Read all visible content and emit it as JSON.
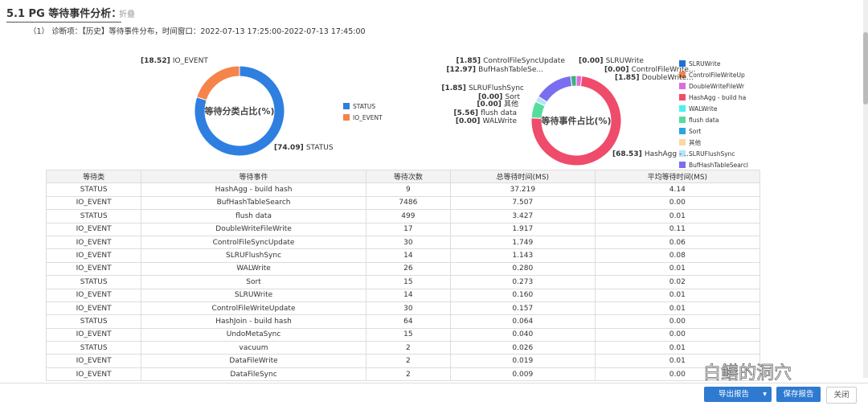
{
  "section": {
    "title": "5.1  PG 等待事件分析：",
    "fold_label": "折叠",
    "subtitle": "（1） 诊断项：【历史】等待事件分布，时间窗口：2022-07-13 17:25:00-2022-07-13 17:45:00"
  },
  "chart_data": [
    {
      "type": "pie",
      "title": "等待分类占比(%)",
      "legend_placement": "right",
      "slices": [
        {
          "name": "STATUS",
          "value": 74.09,
          "color": "#2e7fe0"
        },
        {
          "name": "IO_EVENT",
          "value": 18.52,
          "color": "#f5844b"
        }
      ]
    },
    {
      "type": "pie",
      "title": "等待事件占比(%)",
      "legend_placement": "right",
      "slices": [
        {
          "name": "SLRUWrite",
          "label": "SLRUWrite",
          "value": 0.0,
          "color": "#1f6fd8"
        },
        {
          "name": "ControlFileWriteUpdate",
          "label": "ControlFileWrite...",
          "legend": "ControlFileWriteUp",
          "value": 0.0,
          "color": "#f5844b"
        },
        {
          "name": "DoubleWriteFileWrite",
          "label": "DoubleWrite...",
          "legend": "DoubleWriteFileWr",
          "value": 1.85,
          "color": "#de6bdc"
        },
        {
          "name": "HashAgg - build hash",
          "label": "HashAgg - ...",
          "legend": "HashAgg - build ha",
          "value": 68.53,
          "color": "#ef4b6b"
        },
        {
          "name": "WALWrite",
          "label": "WALWrite",
          "value": 0.0,
          "color": "#4cf0f0"
        },
        {
          "name": "flush data",
          "label": "flush data",
          "value": 5.56,
          "color": "#55dd9d"
        },
        {
          "name": "Sort",
          "label": "Sort",
          "value": 0.0,
          "color": "#2aa6e0"
        },
        {
          "name": "其他",
          "label": "其他",
          "value": 0.0,
          "color": "#fcd9a0"
        },
        {
          "name": "SLRUFlushSync",
          "label": "SLRUFlushSync",
          "value": 1.85,
          "color": "#b5e3fb"
        },
        {
          "name": "BufHashTableSearch",
          "label": "BufHashTableSe...",
          "legend": "BufHashTableSearcl",
          "value": 12.97,
          "color": "#7a6ef0"
        },
        {
          "name": "ControlFileSyncUpdate",
          "label": "ControlFileSyncUpdate",
          "value": 1.85,
          "color": "#3db07c"
        }
      ]
    }
  ],
  "table": {
    "headers": [
      "等待类",
      "等待事件",
      "等待次数",
      "总等待时间(MS)",
      "平均等待时间(MS)"
    ],
    "rows": [
      [
        "STATUS",
        "HashAgg - build hash",
        "9",
        "37.219",
        "4.14"
      ],
      [
        "IO_EVENT",
        "BufHashTableSearch",
        "7486",
        "7.507",
        "0.00"
      ],
      [
        "STATUS",
        "flush data",
        "499",
        "3.427",
        "0.01"
      ],
      [
        "IO_EVENT",
        "DoubleWriteFileWrite",
        "17",
        "1.917",
        "0.11"
      ],
      [
        "IO_EVENT",
        "ControlFileSyncUpdate",
        "30",
        "1.749",
        "0.06"
      ],
      [
        "IO_EVENT",
        "SLRUFlushSync",
        "14",
        "1.143",
        "0.08"
      ],
      [
        "IO_EVENT",
        "WALWrite",
        "26",
        "0.280",
        "0.01"
      ],
      [
        "STATUS",
        "Sort",
        "15",
        "0.273",
        "0.02"
      ],
      [
        "IO_EVENT",
        "SLRUWrite",
        "14",
        "0.160",
        "0.01"
      ],
      [
        "IO_EVENT",
        "ControlFileWriteUpdate",
        "30",
        "0.157",
        "0.01"
      ],
      [
        "STATUS",
        "HashJoin - build hash",
        "64",
        "0.064",
        "0.00"
      ],
      [
        "IO_EVENT",
        "UndoMetaSync",
        "15",
        "0.040",
        "0.00"
      ],
      [
        "STATUS",
        "vacuum",
        "2",
        "0.026",
        "0.01"
      ],
      [
        "IO_EVENT",
        "DataFileWrite",
        "2",
        "0.019",
        "0.01"
      ],
      [
        "IO_EVENT",
        "DataFileSync",
        "2",
        "0.009",
        "0.00"
      ]
    ]
  },
  "footer": {
    "export": "导出报告",
    "save": "保存报告",
    "close": "关闭"
  },
  "watermark": "白鳝的洞穴"
}
